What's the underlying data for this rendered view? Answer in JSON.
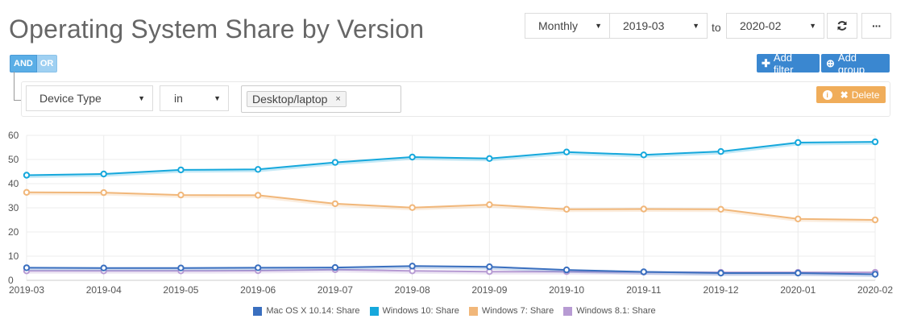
{
  "header": {
    "title": "Operating System Share by Version"
  },
  "controls": {
    "period": "Monthly",
    "from": "2019-03",
    "to_label": "to",
    "to": "2020-02",
    "refresh_icon": "refresh-icon",
    "more_label": "···"
  },
  "logic": {
    "and_label": "AND",
    "or_label": "OR"
  },
  "actions": {
    "add_filter": "Add filter",
    "add_group": "Add group",
    "delete": "Delete"
  },
  "filter": {
    "field": "Device Type",
    "operator": "in",
    "value_tag": "Desktop/laptop",
    "tag_remove": "×"
  },
  "colors": {
    "mac": "#3a6fbf",
    "win10": "#16a8dc",
    "win7": "#f1b77a",
    "win81": "#b79bd3",
    "primary": "#3a87d0",
    "warning": "#f0ad5a"
  },
  "chart_data": {
    "type": "line",
    "categories": [
      "2019-03",
      "2019-04",
      "2019-05",
      "2019-06",
      "2019-07",
      "2019-08",
      "2019-09",
      "2019-10",
      "2019-11",
      "2019-12",
      "2020-01",
      "2020-02"
    ],
    "ylim": [
      0,
      60
    ],
    "yticks": [
      0,
      10,
      20,
      30,
      40,
      50,
      60
    ],
    "grid": true,
    "legend_position": "bottom",
    "series": [
      {
        "name": "Mac OS X 10.14: Share",
        "color": "#3a6fbf",
        "values": [
          5.2,
          5.1,
          5.1,
          5.2,
          5.3,
          5.9,
          5.6,
          4.3,
          3.5,
          3.0,
          3.0,
          2.5
        ]
      },
      {
        "name": "Windows 10: Share",
        "color": "#16a8dc",
        "values": [
          43.5,
          44.0,
          45.7,
          45.9,
          48.8,
          51.0,
          50.4,
          53.1,
          51.9,
          53.3,
          57.0,
          57.3
        ]
      },
      {
        "name": "Windows 7: Share",
        "color": "#f1b77a",
        "values": [
          36.4,
          36.3,
          35.3,
          35.2,
          31.7,
          30.1,
          31.3,
          29.4,
          29.5,
          29.4,
          25.4,
          25.0
        ]
      },
      {
        "name": "Windows 8.1: Share",
        "color": "#b79bd3",
        "values": [
          3.9,
          3.9,
          3.9,
          4.0,
          4.4,
          3.9,
          3.6,
          3.6,
          3.4,
          3.3,
          3.3,
          3.3
        ]
      }
    ]
  }
}
